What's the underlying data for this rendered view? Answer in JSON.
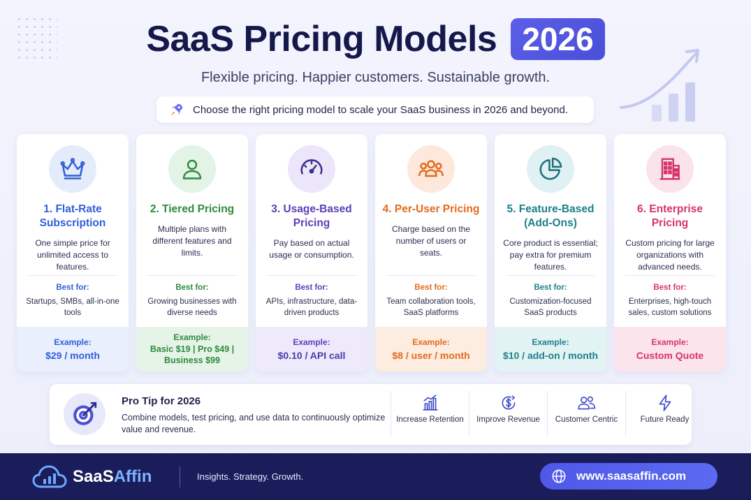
{
  "header": {
    "title": "SaaS Pricing Models",
    "year": "2026",
    "subtitle": "Flexible pricing. Happier customers. Sustainable growth.",
    "cta": "Choose the right pricing model to scale your SaaS business in 2026 and beyond.",
    "cta_icon": "rocket-icon"
  },
  "cards": [
    {
      "title": "1. Flat-Rate Subscription",
      "icon": "crown-icon",
      "accent": "#2f5fd8",
      "description": "One simple price for unlimited access to features.",
      "best_label": "Best for:",
      "best_for": "Startups, SMBs, all-in-one tools",
      "example_label": "Example:",
      "example_value": "$29 / month"
    },
    {
      "title": "2. Tiered Pricing",
      "icon": "user-icon",
      "accent": "#2e8a3e",
      "description": "Multiple plans with different features and limits.",
      "best_label": "Best for:",
      "best_for": "Growing businesses with diverse needs",
      "example_label": "Example:",
      "example_value": "Basic $19 | Pro $49 | Business $99"
    },
    {
      "title": "3. Usage-Based Pricing",
      "icon": "gauge-icon",
      "accent": "#5a3fb8",
      "description": "Pay based on actual usage or consumption.",
      "best_label": "Best for:",
      "best_for": "APIs, infrastructure, data-driven products",
      "example_label": "Example:",
      "example_value": "$0.10 / API call"
    },
    {
      "title": "4. Per-User Pricing",
      "icon": "users-icon",
      "accent": "#e46a1c",
      "description": "Charge based on the number of users or seats.",
      "best_label": "Best for:",
      "best_for": "Team collaboration tools, SaaS platforms",
      "example_label": "Example:",
      "example_value": "$8 / user / month"
    },
    {
      "title": "5. Feature-Based (Add-Ons)",
      "icon": "pie-chart-icon",
      "accent": "#1e7f8c",
      "description": "Core product is essential; pay extra for premium features.",
      "best_label": "Best for:",
      "best_for": "Customization-focused SaaS products",
      "example_label": "Example:",
      "example_value": "$10 / add-on / month"
    },
    {
      "title": "6. Enterprise Pricing",
      "icon": "building-icon",
      "accent": "#d6336c",
      "description": "Custom pricing for large organizations with advanced needs.",
      "best_label": "Best for:",
      "best_for": "Enterprises, high-touch sales, custom solutions",
      "example_label": "Example:",
      "example_value": "Custom Quote"
    }
  ],
  "tip": {
    "title": "Pro Tip for 2026",
    "text": "Combine models, test pricing, and use data to continuously optimize value and revenue.",
    "icon": "target-icon",
    "items": [
      {
        "label": "Increase Retention",
        "icon": "bar-chart-icon"
      },
      {
        "label": "Improve Revenue",
        "icon": "dollar-icon"
      },
      {
        "label": "Customer Centric",
        "icon": "customers-icon"
      },
      {
        "label": "Future Ready",
        "icon": "lightning-icon"
      }
    ]
  },
  "footer": {
    "brand_prefix": "SaaS",
    "brand_suffix": "Affin",
    "tagline": "Insights. Strategy. Growth.",
    "url": "www.saasaffin.com",
    "globe_icon": "globe-icon",
    "logo_icon": "cloud-chart-icon"
  }
}
